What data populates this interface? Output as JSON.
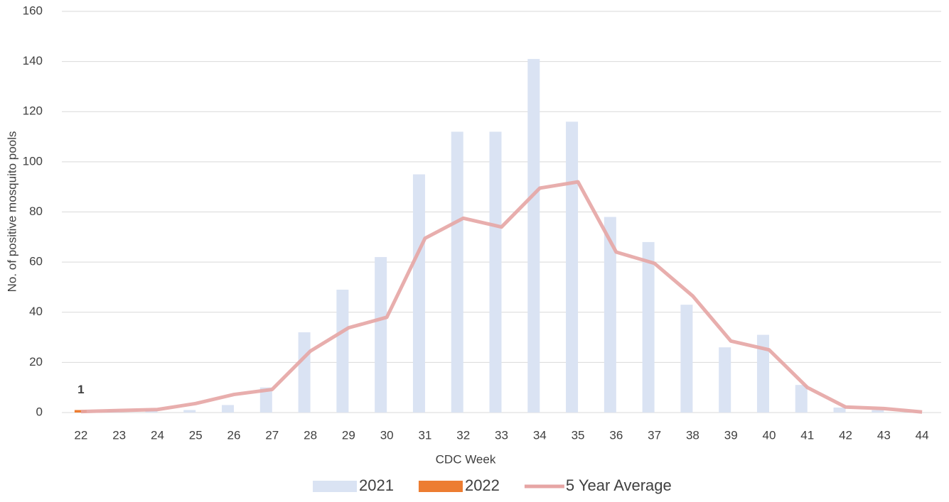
{
  "chart_data": {
    "type": "bar-line",
    "x_label": "CDC Week",
    "y_label": "No. of positive mosquito pools",
    "categories": [
      "22",
      "23",
      "24",
      "25",
      "26",
      "27",
      "28",
      "29",
      "30",
      "31",
      "32",
      "33",
      "34",
      "35",
      "36",
      "37",
      "38",
      "39",
      "40",
      "41",
      "42",
      "43",
      "44"
    ],
    "series": [
      {
        "name": "2021",
        "type": "bar",
        "color": "#dae3f3",
        "values": [
          0,
          1,
          1,
          1,
          3,
          10,
          32,
          49,
          62,
          95,
          112,
          112,
          141,
          116,
          78,
          68,
          43,
          26,
          31,
          11,
          2,
          1,
          0
        ]
      },
      {
        "name": "2022",
        "type": "bar",
        "color": "#ed7d31",
        "values": [
          1,
          null,
          null,
          null,
          null,
          null,
          null,
          null,
          null,
          null,
          null,
          null,
          null,
          null,
          null,
          null,
          null,
          null,
          null,
          null,
          null,
          null,
          null
        ],
        "data_labels": true
      },
      {
        "name": "5 Year Average",
        "type": "line",
        "color": "#e6a5a4",
        "values": [
          0.4,
          0.8,
          1.2,
          3.6,
          7.2,
          9.2,
          24.5,
          33.8,
          38,
          69.5,
          77.5,
          74,
          89.5,
          92,
          64,
          59.5,
          46.5,
          28.5,
          25,
          10,
          2.2,
          1.6,
          0.2
        ]
      }
    ],
    "ylim": [
      0,
      160
    ],
    "yticks": [
      0,
      20,
      40,
      60,
      80,
      100,
      120,
      140,
      160
    ],
    "grid": true
  }
}
